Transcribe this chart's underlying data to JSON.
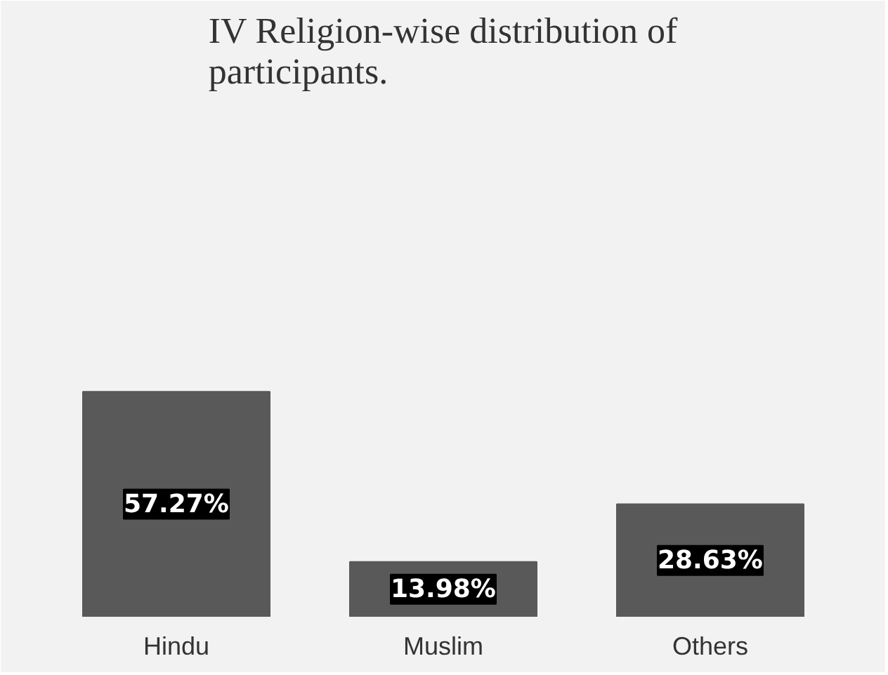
{
  "chart_data": {
    "type": "bar",
    "title": "IV Religion-wise distribution of participants.",
    "categories": [
      "Hindu",
      "Muslim",
      "Others"
    ],
    "values": [
      57.27,
      13.98,
      28.63
    ],
    "value_labels": [
      "57.27%",
      "13.98%",
      "28.63%"
    ],
    "color": "#595959",
    "data_labels": true
  }
}
